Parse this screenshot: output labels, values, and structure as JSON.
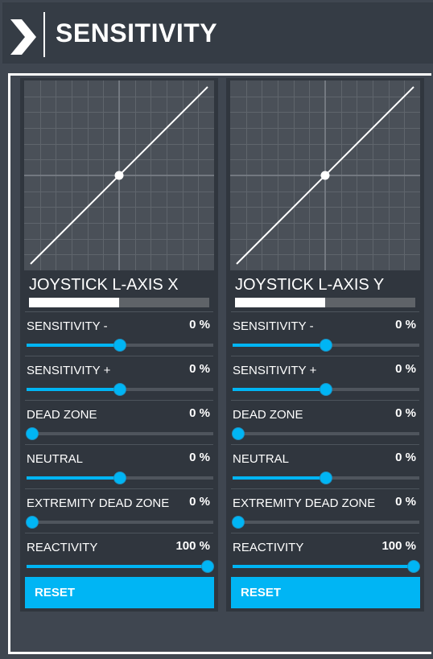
{
  "header": {
    "title": "SENSITIVITY",
    "icon": "chevron-right-icon"
  },
  "colors": {
    "accent": "#00b5f4",
    "panel": "#30363e",
    "background": "#3f4650",
    "header": "#353c45"
  },
  "panels": [
    {
      "axis_name": "JOYSTICK L-AXIS X",
      "axis_level": 0.5,
      "sliders": [
        {
          "label": "SENSITIVITY -",
          "value": "0 %",
          "position": 0.5
        },
        {
          "label": "SENSITIVITY +",
          "value": "0 %",
          "position": 0.5
        },
        {
          "label": "DEAD ZONE",
          "value": "0 %",
          "position": 0.0
        },
        {
          "label": "NEUTRAL",
          "value": "0 %",
          "position": 0.5
        },
        {
          "label": "EXTREMITY DEAD ZONE",
          "value": "0 %",
          "position": 0.0
        },
        {
          "label": "REACTIVITY",
          "value": "100 %",
          "position": 1.0
        }
      ],
      "reset_label": "RESET"
    },
    {
      "axis_name": "JOYSTICK L-AXIS Y",
      "axis_level": 0.5,
      "sliders": [
        {
          "label": "SENSITIVITY -",
          "value": "0 %",
          "position": 0.5
        },
        {
          "label": "SENSITIVITY +",
          "value": "0 %",
          "position": 0.5
        },
        {
          "label": "DEAD ZONE",
          "value": "0 %",
          "position": 0.0
        },
        {
          "label": "NEUTRAL",
          "value": "0 %",
          "position": 0.5
        },
        {
          "label": "EXTREMITY DEAD ZONE",
          "value": "0 %",
          "position": 0.0
        },
        {
          "label": "REACTIVITY",
          "value": "100 %",
          "position": 1.0
        }
      ],
      "reset_label": "RESET"
    }
  ]
}
